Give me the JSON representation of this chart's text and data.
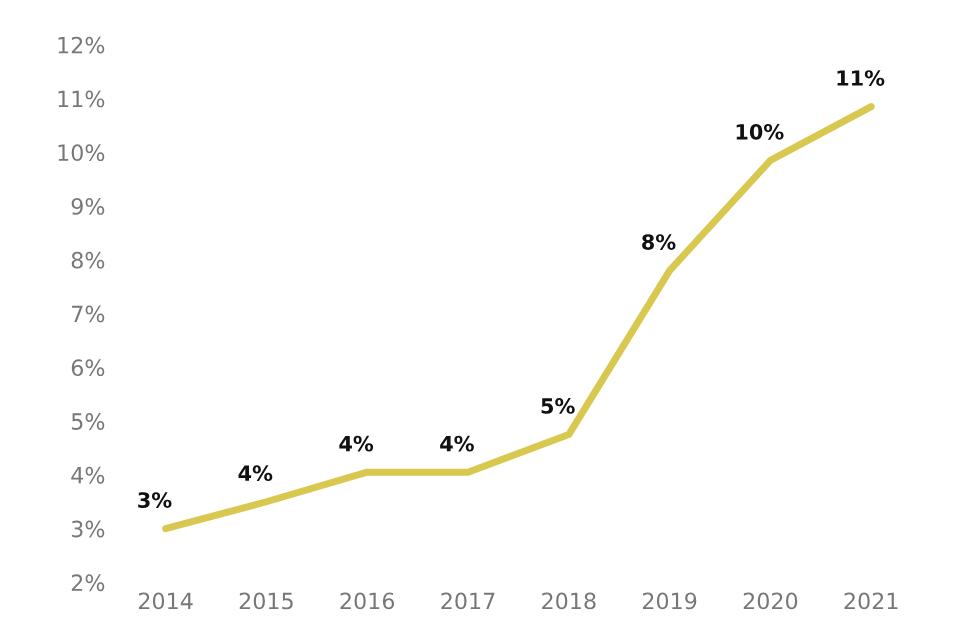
{
  "chart_data": {
    "type": "line",
    "categories": [
      "2014",
      "2015",
      "2016",
      "2017",
      "2018",
      "2019",
      "2020",
      "2021"
    ],
    "series": [
      {
        "color": "#d9c850",
        "values": [
          3.0,
          3.5,
          4.05,
          4.05,
          4.75,
          7.8,
          9.85,
          10.85
        ],
        "value_labels": [
          "3%",
          "4%",
          "4%",
          "4%",
          "5%",
          "8%",
          "10%",
          "11%"
        ]
      }
    ],
    "ylim": [
      2,
      12
    ],
    "yticks": [
      {
        "value": 2,
        "label": "2%"
      },
      {
        "value": 3,
        "label": "3%"
      },
      {
        "value": 4,
        "label": "4%"
      },
      {
        "value": 5,
        "label": "5%"
      },
      {
        "value": 6,
        "label": "6%"
      },
      {
        "value": 7,
        "label": "7%"
      },
      {
        "value": 8,
        "label": "8%"
      },
      {
        "value": 9,
        "label": "9%"
      },
      {
        "value": 10,
        "label": "10%"
      },
      {
        "value": 11,
        "label": "11%"
      },
      {
        "value": 12,
        "label": "12%"
      }
    ],
    "grid": false,
    "legend": false,
    "marker": "none",
    "line_style": "solid"
  }
}
